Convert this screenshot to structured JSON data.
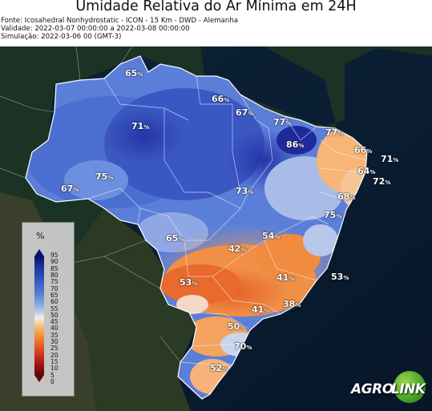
{
  "header": {
    "title": "Umidade Relativa do Ar Mínima em 24H",
    "source": "Fonte: Icosahedral Nonhydrostatic - ICON - 15 Km - DWD - Alemanha",
    "validity": "Validade: 2022-03-07 00:00:00 a 2022-03-08 00:00:00",
    "simulation": "Simulação: 2022-03-06 00 (GMT-3)"
  },
  "map": {
    "region": "Brasil",
    "unit_suffix": "%",
    "labels": [
      {
        "id": "roraima",
        "value": "65"
      },
      {
        "id": "amapa-para",
        "value": "66"
      },
      {
        "id": "maranhao-coast",
        "value": "67"
      },
      {
        "id": "ceara-coast",
        "value": "77"
      },
      {
        "id": "rn-coast",
        "value": "77"
      },
      {
        "id": "amazonas-north",
        "value": "71"
      },
      {
        "id": "ceara",
        "value": "86"
      },
      {
        "id": "paraiba",
        "value": "66"
      },
      {
        "id": "offshore-ne",
        "value": "71"
      },
      {
        "id": "pernambuco",
        "value": "64"
      },
      {
        "id": "offshore-pe",
        "value": "72"
      },
      {
        "id": "amazonas-central",
        "value": "75"
      },
      {
        "id": "acre",
        "value": "67"
      },
      {
        "id": "tocantins",
        "value": "73"
      },
      {
        "id": "bahia-north",
        "value": "68"
      },
      {
        "id": "bahia-coast",
        "value": "75"
      },
      {
        "id": "rondonia",
        "value": "65"
      },
      {
        "id": "minas-north",
        "value": "54"
      },
      {
        "id": "goias",
        "value": "42"
      },
      {
        "id": "mato-grosso-sul",
        "value": "53"
      },
      {
        "id": "minas-south",
        "value": "41"
      },
      {
        "id": "espirito-santo-coast",
        "value": "53"
      },
      {
        "id": "sao-paulo",
        "value": "41"
      },
      {
        "id": "rio-coast",
        "value": "38"
      },
      {
        "id": "parana",
        "value": "50"
      },
      {
        "id": "santa-catarina",
        "value": "70"
      },
      {
        "id": "rio-grande-sul",
        "value": "52"
      }
    ]
  },
  "legend": {
    "unit": "%",
    "ticks": [
      "95",
      "90",
      "85",
      "80",
      "75",
      "70",
      "65",
      "60",
      "55",
      "50",
      "45",
      "40",
      "35",
      "30",
      "25",
      "20",
      "15",
      "10",
      "5",
      "0"
    ]
  },
  "logo": {
    "part1": "AGRO",
    "part2": "LINK",
    "color": "#4da82a"
  }
}
